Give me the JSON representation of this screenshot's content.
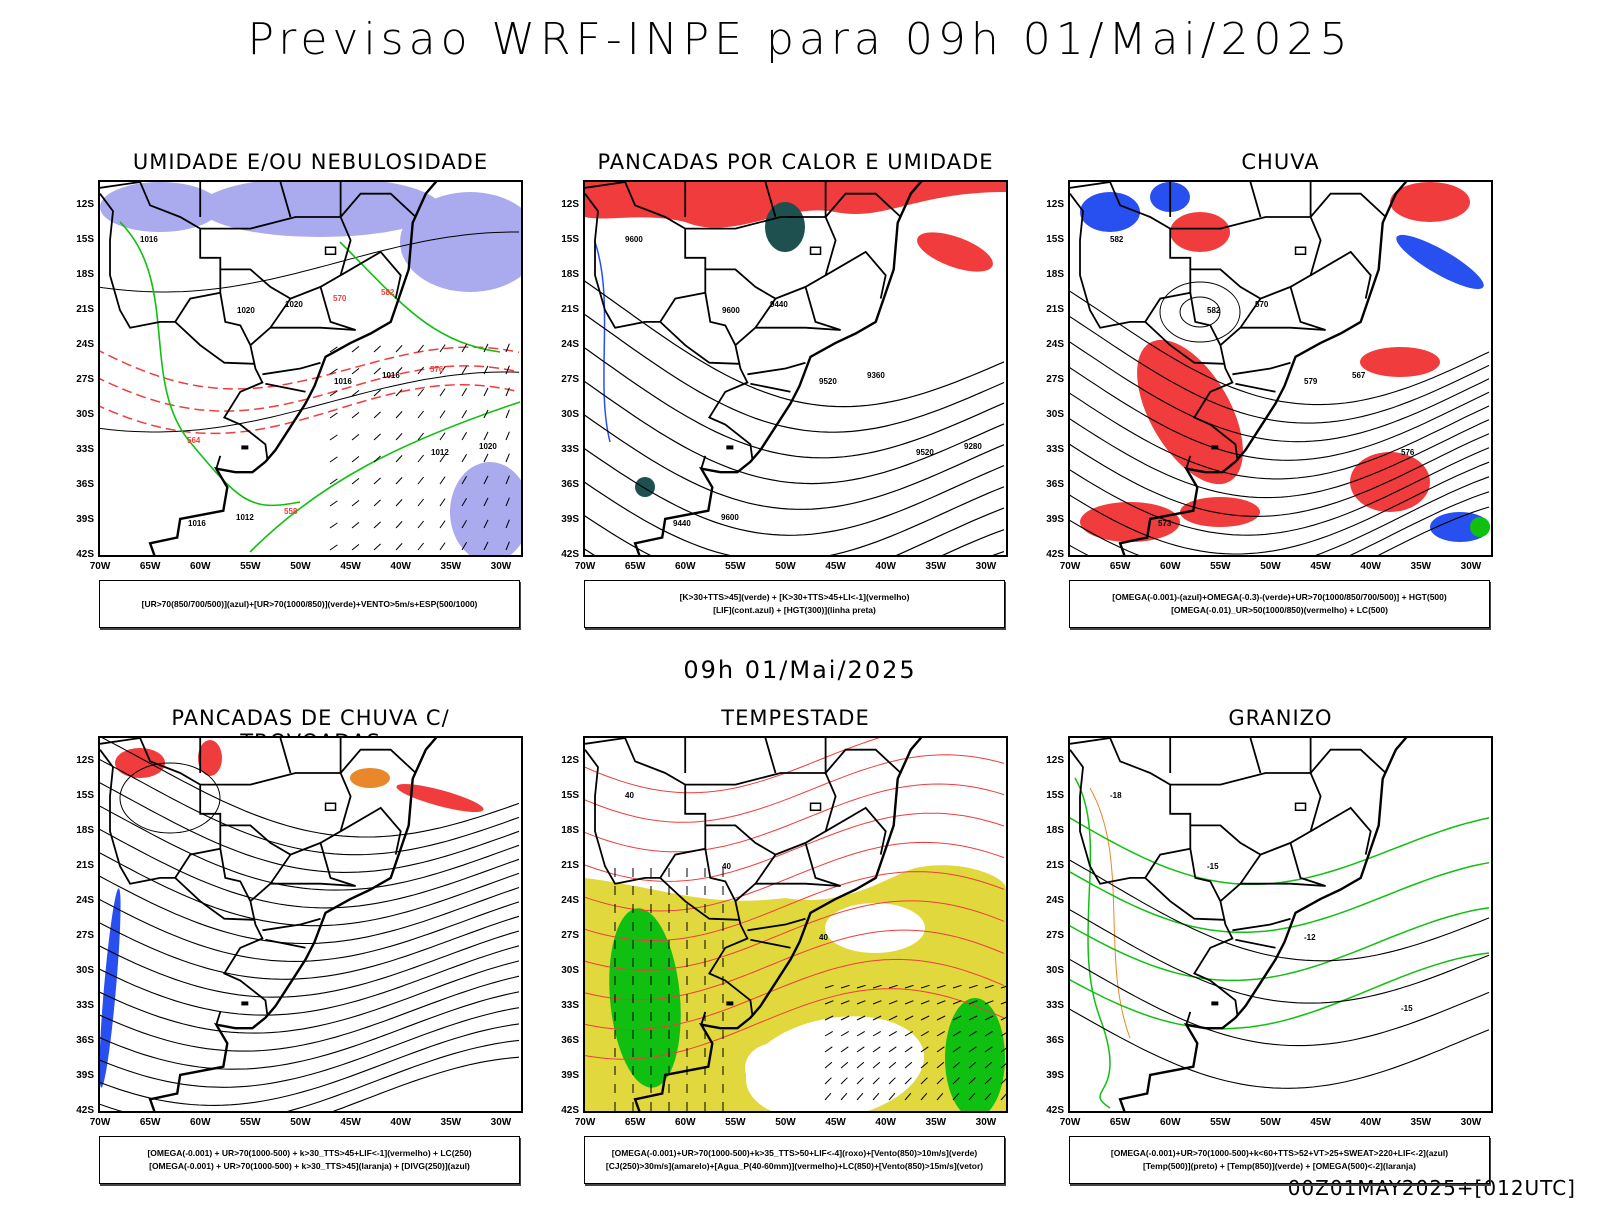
{
  "title": "Previsao WRF-INPE  para 09h 01/Mai/2025",
  "mid_title": "09h 01/Mai/2025",
  "footer": "00Z01MAY2025+[012UTC]",
  "lat_ticks": [
    "12S",
    "15S",
    "18S",
    "21S",
    "24S",
    "27S",
    "30S",
    "33S",
    "36S",
    "39S",
    "42S"
  ],
  "lon_ticks": [
    "70W",
    "65W",
    "60W",
    "55W",
    "50W",
    "45W",
    "40W",
    "35W",
    "30W"
  ],
  "colors": {
    "red": "#f03c3c",
    "blue": "#2850f0",
    "lavender": "#aaaaee",
    "green": "#10c010",
    "yellow": "#e0d83c",
    "orange": "#e8882a",
    "darkteal": "#1e5050"
  },
  "panels": [
    {
      "id": "umidade",
      "title": "UMIDADE E/OU NEBULOSIDADE",
      "legend": [
        "[UR>70(850/700/500)](azul)+[UR>70(1000/850)](verde)+VENTO>5m/s+ESP(500/1000)"
      ],
      "contour_labels": [
        "1016",
        "1020",
        "1016",
        "1012",
        "1016",
        "1020",
        "1016",
        "1020",
        "1012",
        "570",
        "576",
        "564",
        "558",
        "582"
      ]
    },
    {
      "id": "pancadas-calor",
      "title": "PANCADAS POR CALOR E UMIDADE",
      "legend": [
        "[K>30+TTS>45](verde) + [K>30+TTS>45+LI<-1](vermelho)",
        "[LIF](cont.azul) + [HGT(300)](linha preta)"
      ],
      "contour_labels": [
        "9600",
        "9600",
        "9520",
        "9520",
        "9440",
        "9440",
        "9360",
        "9280",
        "9600"
      ]
    },
    {
      "id": "chuva",
      "title": "CHUVA",
      "legend": [
        "[OMEGA(-0.001)-(azul)+OMEGA(-0.3)-(verde)+UR>70(1000/850/700/500)] + HGT(500)",
        "[OMEGA(-0.01)_UR>50(1000/850)(vermelho) + LC(500)"
      ],
      "contour_labels": [
        "582",
        "582",
        "579",
        "576",
        "573",
        "570",
        "567"
      ]
    },
    {
      "id": "trovoadas",
      "title": "PANCADAS DE CHUVA C/ TROVOADAS",
      "legend": [
        "[OMEGA(-0.001) + UR>70(1000-500) + k>30_TTS>45+LIF<-1](vermelho) + LC(250)",
        "[OMEGA(-0.001) + UR>70(1000-500) + k>30_TTS>45](laranja) + [DIVG(250)](azul)"
      ],
      "contour_labels": []
    },
    {
      "id": "tempestade",
      "title": "TEMPESTADE",
      "legend": [
        "[OMEGA(-0.001)+UR>70(1000-500)+k>35_TTS>50+LIF<-4](roxo)+[Vento(850)>10m/s](verde)",
        "[CJ(250)>30m/s](amarelo)+[Agua_P(40-60mm)](vermelho)+LC(850)+[Vento(850)>15m/s](vetor)"
      ],
      "contour_labels": [
        "40",
        "40",
        "40"
      ]
    },
    {
      "id": "granizo",
      "title": "GRANIZO",
      "legend": [
        "[OMEGA(-0.001)+UR>70(1000-500)+k<60+TTS>52+VT>25+SWEAT>220+LIF<-2](azul)",
        "[Temp(500)](preto) + [Temp(850)](verde) + [OMEGA(500)<-2](laranja)"
      ],
      "contour_labels": [
        "-18",
        "-15",
        "-12",
        "-15"
      ]
    }
  ]
}
